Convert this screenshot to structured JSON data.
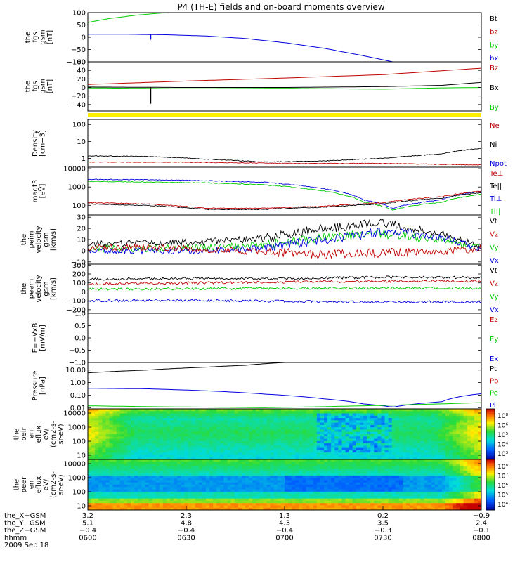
{
  "title": "P4 (TH-E) fields and on-board moments overview",
  "colors": {
    "black": "#000000",
    "red": "#c00000",
    "green": "#00cc00",
    "blue": "#0000dd",
    "yellow": "#ffee00"
  },
  "chart_data": [
    {
      "type": "line",
      "ylabel": [
        "the",
        "fgs",
        "gsm",
        "[nT]"
      ],
      "ylim": [
        -100,
        100
      ],
      "yscale": "linear",
      "yticks": [
        "100",
        "50",
        "0",
        "−50",
        "−100"
      ],
      "ytick_values": [
        100,
        50,
        0,
        -50,
        -100
      ],
      "legend": [
        {
          "label": "Bt",
          "color": "black"
        },
        {
          "label": "bz",
          "color": "red"
        },
        {
          "label": "by",
          "color": "green"
        },
        {
          "label": "bx",
          "color": "blue"
        }
      ],
      "series": [
        {
          "color": "green",
          "x": [
            6.0,
            6.1,
            6.25,
            6.4,
            6.53
          ],
          "y": [
            60,
            75,
            90,
            100,
            115
          ]
        },
        {
          "color": "blue",
          "x": [
            6.0,
            6.2,
            6.4,
            6.6,
            6.8,
            7.0,
            7.2,
            7.4,
            7.55
          ],
          "y": [
            12,
            12,
            10,
            5,
            -5,
            -22,
            -45,
            -75,
            -100
          ]
        }
      ]
    },
    {
      "type": "line",
      "ylabel": [
        "the",
        "fgs",
        "gsm",
        "[nT]"
      ],
      "ylim": [
        -55,
        60
      ],
      "yscale": "linear",
      "yticks": [
        "60",
        "40",
        "20",
        "0",
        "−20",
        "−40"
      ],
      "ytick_values": [
        60,
        40,
        20,
        0,
        -20,
        -40
      ],
      "legend": [
        {
          "label": "Bz",
          "color": "red"
        },
        {
          "label": "Bx",
          "color": "black"
        },
        {
          "label": "By",
          "color": "green"
        }
      ],
      "series": [
        {
          "color": "red",
          "x": [
            6.0,
            6.5,
            7.0,
            7.5,
            7.83,
            8.0
          ],
          "y": [
            7,
            15,
            22,
            30,
            40,
            45
          ]
        },
        {
          "color": "black",
          "x": [
            6.0,
            6.5,
            7.0,
            7.5,
            7.8,
            8.0
          ],
          "y": [
            1,
            0,
            0,
            2,
            5,
            12
          ]
        },
        {
          "color": "green",
          "x": [
            6.0,
            6.5,
            7.0,
            7.5,
            7.8,
            8.0
          ],
          "y": [
            -1,
            -3,
            -2,
            -4,
            -1,
            0
          ]
        }
      ]
    },
    {
      "type": "bar",
      "name": "mode-bar",
      "values": [
        1
      ],
      "color": "yellow"
    },
    {
      "type": "line",
      "ylabel": [
        "Density",
        "[cm−3]"
      ],
      "ylim": [
        0.3,
        200
      ],
      "yscale": "log",
      "yticks": [
        "100",
        "10",
        "1"
      ],
      "ytick_values": [
        100,
        10,
        1
      ],
      "legend": [
        {
          "label": "Ne",
          "color": "red"
        },
        {
          "label": "Ni",
          "color": "black"
        },
        {
          "label": "Npot",
          "color": "blue"
        }
      ],
      "series": [
        {
          "color": "black",
          "x": [
            6.0,
            6.3,
            6.6,
            6.9,
            7.2,
            7.5,
            7.8,
            8.0
          ],
          "y": [
            1.4,
            1.3,
            0.9,
            0.6,
            0.7,
            1.0,
            1.8,
            4.0
          ]
        },
        {
          "color": "red",
          "x": [
            6.0,
            6.5,
            7.0,
            7.5,
            8.0
          ],
          "y": [
            0.6,
            0.6,
            0.5,
            0.5,
            0.4
          ]
        }
      ]
    },
    {
      "type": "line",
      "ylabel": [
        "magt3",
        "[eV]"
      ],
      "ylim": [
        30,
        12000
      ],
      "yscale": "log",
      "yticks": [
        "10000",
        "1000",
        "100"
      ],
      "ytick_values": [
        10000,
        1000,
        100
      ],
      "legend": [
        {
          "label": "Te⊥",
          "color": "red"
        },
        {
          "label": "Te||",
          "color": "black"
        },
        {
          "label": "Ti⊥",
          "color": "blue"
        },
        {
          "label": "Ti||",
          "color": "green"
        }
      ],
      "series": [
        {
          "color": "blue",
          "x": [
            6.0,
            6.3,
            6.6,
            6.9,
            7.2,
            7.4,
            7.55,
            7.8,
            8.0
          ],
          "y": [
            2600,
            2500,
            2200,
            1800,
            800,
            200,
            70,
            200,
            600
          ]
        },
        {
          "color": "green",
          "x": [
            6.0,
            6.3,
            6.6,
            6.9,
            7.2,
            7.4,
            7.55,
            7.8,
            8.0
          ],
          "y": [
            2000,
            1900,
            1700,
            1300,
            600,
            150,
            55,
            150,
            400
          ]
        },
        {
          "color": "red",
          "x": [
            6.0,
            6.3,
            6.6,
            6.9,
            7.2,
            7.5,
            7.8,
            8.0
          ],
          "y": [
            140,
            120,
            70,
            70,
            90,
            140,
            300,
            600
          ]
        },
        {
          "color": "black",
          "x": [
            6.0,
            6.3,
            6.6,
            6.9,
            7.2,
            7.5,
            7.8,
            8.0
          ],
          "y": [
            120,
            100,
            60,
            60,
            80,
            120,
            250,
            500
          ]
        }
      ]
    },
    {
      "type": "line",
      "ylabel": [
        "the",
        "peim",
        "velocity",
        "gsm",
        "[km/s]"
      ],
      "ylim": [
        -12,
        32
      ],
      "yscale": "linear",
      "yticks": [
        "30",
        "20",
        "10",
        "0",
        "−10"
      ],
      "ytick_values": [
        30,
        20,
        10,
        0,
        -10
      ],
      "legend": [
        {
          "label": "Vt",
          "color": "black"
        },
        {
          "label": "Vz",
          "color": "red"
        },
        {
          "label": "Vy",
          "color": "green"
        },
        {
          "label": "Vx",
          "color": "blue"
        }
      ],
      "series": [
        {
          "color": "black",
          "x": [
            6.0,
            6.3,
            6.6,
            6.9,
            7.2,
            7.5,
            7.8,
            8.0
          ],
          "y": [
            6,
            7,
            8,
            11,
            20,
            25,
            15,
            3
          ]
        },
        {
          "color": "green",
          "x": [
            6.0,
            6.3,
            6.6,
            6.9,
            7.2,
            7.5,
            7.8,
            8.0
          ],
          "y": [
            2,
            2,
            3,
            5,
            12,
            15,
            10,
            2
          ]
        },
        {
          "color": "blue",
          "x": [
            6.0,
            6.3,
            6.6,
            6.9,
            7.2,
            7.5,
            7.8,
            8.0
          ],
          "y": [
            0,
            0,
            0,
            2,
            10,
            17,
            12,
            2
          ]
        },
        {
          "color": "red",
          "x": [
            6.0,
            6.3,
            6.6,
            6.9,
            7.2,
            7.5,
            7.8,
            8.0
          ],
          "y": [
            3,
            3,
            1,
            -1,
            -3,
            -2,
            -1,
            2
          ]
        }
      ]
    },
    {
      "type": "line",
      "ylabel": [
        "the",
        "peem",
        "velocity",
        "gsm",
        "[km/s]"
      ],
      "ylim": [
        -240,
        310
      ],
      "yscale": "linear",
      "yticks": [
        "300",
        "200",
        "100",
        "0",
        "−100",
        "−200"
      ],
      "ytick_values": [
        300,
        200,
        100,
        0,
        -100,
        -200
      ],
      "legend": [
        {
          "label": "Vt",
          "color": "black"
        },
        {
          "label": "Vz",
          "color": "red"
        },
        {
          "label": "Vy",
          "color": "green"
        },
        {
          "label": "Vx",
          "color": "blue"
        }
      ],
      "series": [
        {
          "color": "black",
          "x": [
            6.0,
            6.5,
            7.0,
            7.5,
            8.0
          ],
          "y": [
            140,
            150,
            150,
            165,
            160
          ]
        },
        {
          "color": "red",
          "x": [
            6.0,
            6.5,
            7.0,
            7.5,
            8.0
          ],
          "y": [
            90,
            100,
            110,
            120,
            120
          ]
        },
        {
          "color": "green",
          "x": [
            6.0,
            6.5,
            7.0,
            7.5,
            8.0
          ],
          "y": [
            30,
            35,
            40,
            45,
            40
          ]
        },
        {
          "color": "blue",
          "x": [
            6.0,
            6.5,
            7.0,
            7.5,
            8.0
          ],
          "y": [
            -100,
            -95,
            -105,
            -115,
            -110
          ]
        }
      ]
    },
    {
      "type": "line",
      "ylabel": [
        "E=−VxB",
        "[mV/m]"
      ],
      "ylim": [
        -1.0,
        1.0
      ],
      "yscale": "linear",
      "yticks": [
        "1.0",
        "0.5",
        "0.0",
        "−0.5",
        "−1.0"
      ],
      "ytick_values": [
        1.0,
        0.5,
        0.0,
        -0.5,
        -1.0
      ],
      "legend": [
        {
          "label": "Ez",
          "color": "red"
        },
        {
          "label": "Ey",
          "color": "green"
        },
        {
          "label": "Ex",
          "color": "blue"
        }
      ],
      "series": []
    },
    {
      "type": "line",
      "ylabel": [
        "Pressure",
        "[nPa]"
      ],
      "ylim": [
        0.008,
        40
      ],
      "yscale": "log",
      "yticks": [
        "10.00",
        "1.00",
        "0.10",
        "0.01"
      ],
      "ytick_values": [
        10,
        1,
        0.1,
        0.01
      ],
      "legend": [
        {
          "label": "Pt",
          "color": "black"
        },
        {
          "label": "Pb",
          "color": "red"
        },
        {
          "label": "Pe",
          "color": "green"
        },
        {
          "label": "Pi",
          "color": "blue"
        }
      ],
      "series": [
        {
          "color": "black",
          "x": [
            6.0,
            6.3,
            6.6,
            6.8,
            7.0
          ],
          "y": [
            6,
            10,
            17,
            24,
            40
          ]
        },
        {
          "color": "blue",
          "x": [
            6.0,
            6.3,
            6.6,
            6.9,
            7.2,
            7.4,
            7.55,
            7.8,
            8.0
          ],
          "y": [
            0.35,
            0.32,
            0.22,
            0.12,
            0.05,
            0.02,
            0.011,
            0.03,
            0.13
          ]
        },
        {
          "color": "green",
          "x": [
            6.0,
            6.3,
            6.6,
            6.9,
            7.2,
            7.5,
            7.8,
            8.0
          ],
          "y": [
            0.014,
            0.012,
            0.011,
            0.01,
            0.012,
            0.015,
            0.02,
            0.025
          ]
        }
      ]
    },
    {
      "type": "heatmap",
      "ylabel": [
        "the",
        "peir",
        "en",
        "eflux",
        "eV/",
        "(cm2-s-",
        "sr-eV)"
      ],
      "ylim": [
        5,
        20000
      ],
      "yscale": "log",
      "yticks": [
        "10000",
        "1000",
        "100",
        "10"
      ],
      "ytick_values": [
        10000,
        1000,
        100,
        10
      ],
      "colorbar": {
        "ticks": [
          "10⁸",
          "10⁶",
          "10⁵",
          "10⁴",
          "10³"
        ],
        "range_log": [
          3,
          8
        ]
      }
    },
    {
      "type": "heatmap",
      "ylabel": [
        "the",
        "peer",
        "en",
        "eflux",
        "eV/",
        "(cm2-s-",
        "sr-eV)"
      ],
      "ylim": [
        5,
        20000
      ],
      "yscale": "log",
      "yticks": [
        "10000",
        "1000",
        "100",
        "10"
      ],
      "ytick_values": [
        10000,
        1000,
        100,
        10
      ],
      "colorbar": {
        "ticks": [
          "10⁸",
          "10⁷",
          "10⁶",
          "10⁵",
          "10⁴"
        ],
        "range_log": [
          4,
          8
        ]
      }
    }
  ],
  "xaxis": {
    "rows": [
      {
        "label": "the_X−GSM",
        "values": [
          "3.2",
          "2.3",
          "1.3",
          "0.2",
          "−0.9"
        ]
      },
      {
        "label": "the_Y−GSM",
        "values": [
          "5.1",
          "4.8",
          "4.3",
          "3.5",
          "2.4"
        ]
      },
      {
        "label": "the_Z−GSM",
        "values": [
          "−0.4",
          "−0.4",
          "−0.4",
          "−0.3",
          "−0.1"
        ]
      },
      {
        "label": "hhmm",
        "values": [
          "0600",
          "0630",
          "0700",
          "0730",
          "0800"
        ]
      }
    ],
    "date": "2009 Sep 18",
    "range_hours": [
      6.0,
      8.0
    ]
  }
}
